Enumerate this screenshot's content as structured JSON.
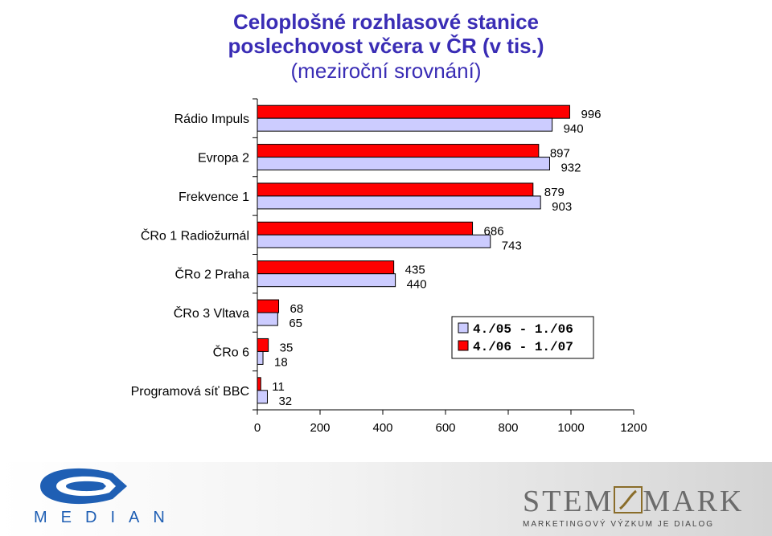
{
  "chart_data": {
    "type": "bar",
    "orientation": "horizontal",
    "title": "Celoplošné rozhlasové stanice\nposlechovost včera v ČR (v tis.)",
    "subtitle": "(meziroční srovnání)",
    "categories": [
      "Rádio Impuls",
      "Evropa 2",
      "Frekvence 1",
      "ČRo 1 Radiožurnál",
      "ČRo 2 Praha",
      "ČRo 3 Vltava",
      "ČRo 6",
      "Programová síť BBC"
    ],
    "series": [
      {
        "name": "4./05 - 1./06",
        "color": "#ccccff",
        "values": [
          940,
          932,
          903,
          743,
          440,
          65,
          18,
          32
        ]
      },
      {
        "name": "4./06 - 1./07",
        "color": "#ff0000",
        "values": [
          996,
          897,
          879,
          686,
          435,
          68,
          35,
          11
        ]
      }
    ],
    "xlim": [
      0,
      1200
    ],
    "xticks": [
      0,
      200,
      400,
      600,
      800,
      1000,
      1200
    ],
    "grid": false,
    "legend": "right-middle"
  },
  "logos": {
    "median": "MEDIAN",
    "stemmark_left": "STEM",
    "stemmark_right": "MARK",
    "stemmark_tagline": "MARKETINGOVÝ VÝZKUM JE DIALOG"
  }
}
